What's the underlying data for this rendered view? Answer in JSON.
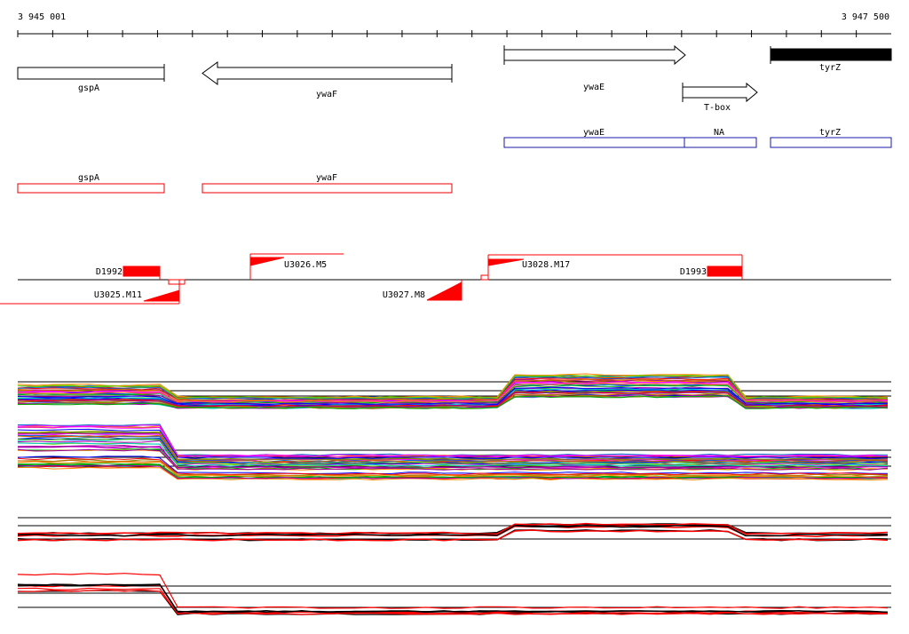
{
  "ruler": {
    "start": "3 945 001",
    "end": "3 947 500"
  },
  "annotation": {
    "genes": [
      {
        "label": "gspA"
      },
      {
        "label": "ywaF"
      },
      {
        "label": "ywaE"
      },
      {
        "label": "T-box"
      },
      {
        "label": "tyrZ"
      }
    ]
  },
  "blue_track": {
    "features": [
      {
        "label": "ywaE"
      },
      {
        "label": "NA"
      },
      {
        "label": "tyrZ"
      }
    ]
  },
  "red_track": {
    "features": [
      {
        "label": "gspA"
      },
      {
        "label": "ywaF"
      }
    ]
  },
  "segments": [
    {
      "label": "D1992"
    },
    {
      "label": "U3025.M11"
    },
    {
      "label": "U3026.M5"
    },
    {
      "label": "U3027.M8"
    },
    {
      "label": "U3028.M17"
    },
    {
      "label": "D1993"
    }
  ]
}
